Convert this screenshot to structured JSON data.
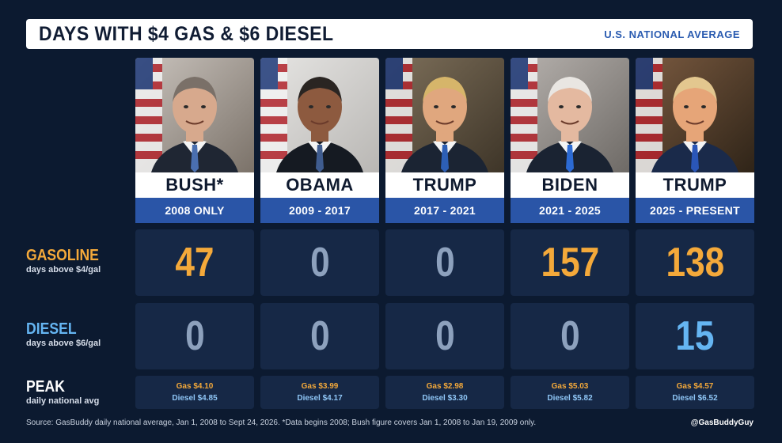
{
  "header": {
    "title": "DAYS WITH $4 GAS & $6 DIESEL",
    "subtitle": "U.S. NATIONAL AVERAGE"
  },
  "rows": {
    "gasoline": {
      "label": "GASOLINE",
      "sub": "days above $4/gal",
      "color": "#f4a93a"
    },
    "diesel": {
      "label": "DIESEL",
      "sub": "days above $6/gal",
      "color": "#65b5f2"
    },
    "peak": {
      "label": "PEAK",
      "sub": "daily national avg",
      "color": "#ffffff"
    }
  },
  "presidents": [
    {
      "name": "BUSH*",
      "years": "2008 ONLY",
      "gasoline_days": "47",
      "diesel_days": "0",
      "peak_gas": "Gas $4.10",
      "peak_diesel": "Diesel $4.85",
      "gas_highlight": true,
      "diesel_highlight": false
    },
    {
      "name": "OBAMA",
      "years": "2009 - 2017",
      "gasoline_days": "0",
      "diesel_days": "0",
      "peak_gas": "Gas $3.99",
      "peak_diesel": "Diesel $4.17",
      "gas_highlight": false,
      "diesel_highlight": false
    },
    {
      "name": "TRUMP",
      "years": "2017 - 2021",
      "gasoline_days": "0",
      "diesel_days": "0",
      "peak_gas": "Gas $2.98",
      "peak_diesel": "Diesel $3.30",
      "gas_highlight": false,
      "diesel_highlight": false
    },
    {
      "name": "BIDEN",
      "years": "2021 - 2025",
      "gasoline_days": "157",
      "diesel_days": "0",
      "peak_gas": "Gas $5.03",
      "peak_diesel": "Diesel $5.82",
      "gas_highlight": true,
      "diesel_highlight": false
    },
    {
      "name": "TRUMP",
      "years": "2025 - PRESENT",
      "gasoline_days": "138",
      "diesel_days": "15",
      "peak_gas": "Gas $4.57",
      "peak_diesel": "Diesel $6.52",
      "gas_highlight": true,
      "diesel_highlight": true
    }
  ],
  "footer": {
    "source": "Source: GasBuddy daily national average, Jan 1, 2008 to Sept 24, 2026. *Data begins 2008; Bush figure covers Jan 1, 2008 to Jan 19, 2009 only.",
    "handle": "@GasBuddyGuy"
  },
  "colors": {
    "background": "#0c1a30",
    "cell": "#162846",
    "gas_accent": "#f4a93a",
    "diesel_accent": "#65b5f2",
    "zero": "#8da1bd",
    "year_band": "#2a55a7"
  }
}
